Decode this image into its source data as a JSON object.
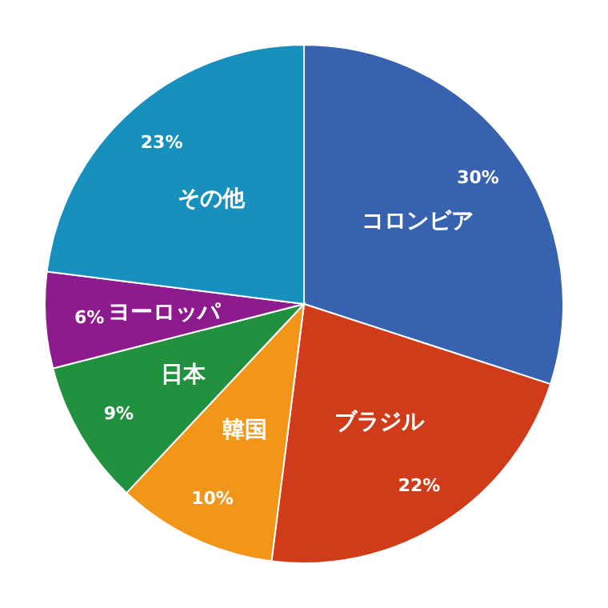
{
  "chart_data": {
    "type": "pie",
    "categories": [
      "コロンビア",
      "ブラジル",
      "韓国",
      "日本",
      "ヨーロッパ",
      "その他"
    ],
    "values": [
      30,
      22,
      10,
      9,
      6,
      23
    ],
    "value_labels": [
      "30%",
      "22%",
      "10%",
      "9%",
      "6%",
      "23%"
    ],
    "colors": [
      "#3762b0",
      "#d03b19",
      "#f2961a",
      "#22913f",
      "#8e1b8e",
      "#1890bd"
    ]
  }
}
